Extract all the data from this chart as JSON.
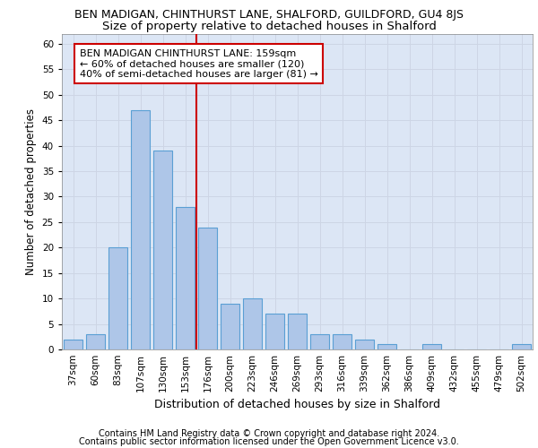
{
  "title1": "BEN MADIGAN, CHINTHURST LANE, SHALFORD, GUILDFORD, GU4 8JS",
  "title2": "Size of property relative to detached houses in Shalford",
  "xlabel": "Distribution of detached houses by size in Shalford",
  "ylabel": "Number of detached properties",
  "footer1": "Contains HM Land Registry data © Crown copyright and database right 2024.",
  "footer2": "Contains public sector information licensed under the Open Government Licence v3.0.",
  "categories": [
    "37sqm",
    "60sqm",
    "83sqm",
    "107sqm",
    "130sqm",
    "153sqm",
    "176sqm",
    "200sqm",
    "223sqm",
    "246sqm",
    "269sqm",
    "293sqm",
    "316sqm",
    "339sqm",
    "362sqm",
    "386sqm",
    "409sqm",
    "432sqm",
    "455sqm",
    "479sqm",
    "502sqm"
  ],
  "values": [
    2,
    3,
    20,
    47,
    39,
    28,
    24,
    9,
    10,
    7,
    7,
    3,
    3,
    2,
    1,
    0,
    1,
    0,
    0,
    0,
    1
  ],
  "bar_color": "#aec6e8",
  "bar_edge_color": "#5a9fd4",
  "bar_linewidth": 0.8,
  "vline_x": 5.5,
  "vline_color": "#cc0000",
  "annotation_text": "BEN MADIGAN CHINTHURST LANE: 159sqm\n← 60% of detached houses are smaller (120)\n40% of semi-detached houses are larger (81) →",
  "annotation_box_color": "#ffffff",
  "annotation_box_edgecolor": "#cc0000",
  "ylim": [
    0,
    62
  ],
  "yticks": [
    0,
    5,
    10,
    15,
    20,
    25,
    30,
    35,
    40,
    45,
    50,
    55,
    60
  ],
  "grid_color": "#cdd5e5",
  "bg_color": "#dce6f5",
  "title1_fontsize": 9,
  "title2_fontsize": 9.5,
  "xlabel_fontsize": 9,
  "ylabel_fontsize": 8.5,
  "tick_fontsize": 7.5,
  "annotation_fontsize": 8,
  "footer_fontsize": 7
}
